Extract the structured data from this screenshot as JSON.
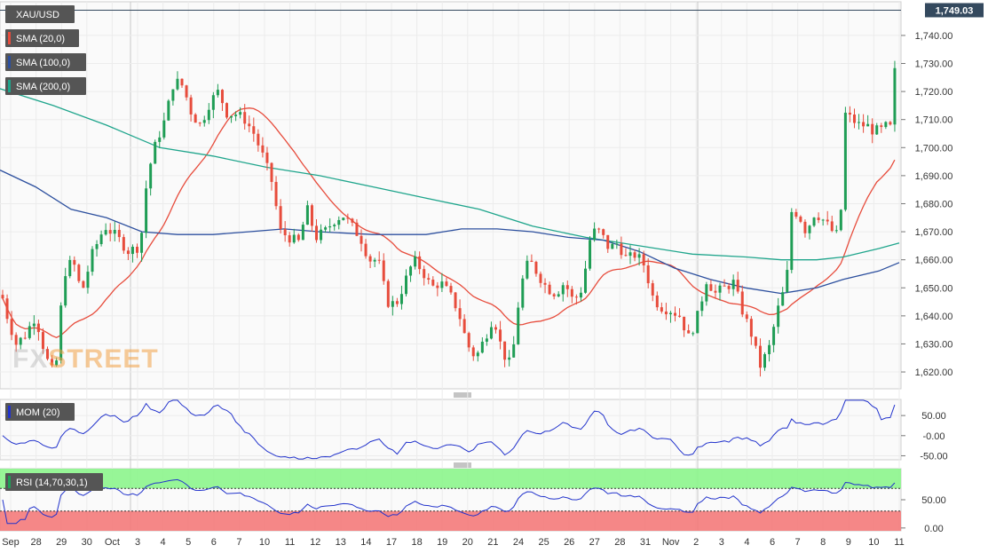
{
  "chart_data": {
    "type": "candlestick",
    "symbol": "XAU/USD",
    "last_price_label": "1,749.03",
    "price_ticks": [
      "1,740.00",
      "1,730.00",
      "1,720.00",
      "1,710.00",
      "1,700.00",
      "1,690.00",
      "1,680.00",
      "1,670.00",
      "1,660.00",
      "1,650.00",
      "1,640.00",
      "1,630.00",
      "1,620.00"
    ],
    "price_tick_values": [
      1740,
      1730,
      1720,
      1710,
      1700,
      1690,
      1680,
      1670,
      1660,
      1650,
      1640,
      1630,
      1620
    ],
    "price_range": [
      1614,
      1752
    ],
    "x_labels": [
      "Sep",
      "28",
      "29",
      "30",
      "Oct",
      "3",
      "4",
      "5",
      "6",
      "7",
      "10",
      "11",
      "12",
      "13",
      "14",
      "17",
      "18",
      "19",
      "20",
      "21",
      "24",
      "25",
      "26",
      "27",
      "28",
      "31",
      "Nov",
      "2",
      "3",
      "4",
      "6",
      "7",
      "8",
      "9",
      "10",
      "11"
    ],
    "indicators": {
      "sma20": {
        "label": "SMA (20,0)",
        "color": "#e74c3c"
      },
      "sma100": {
        "label": "SMA (100,0)",
        "color": "#2c4f9e"
      },
      "sma200": {
        "label": "SMA (200,0)",
        "color": "#1fa58c"
      }
    },
    "mom": {
      "label": "MOM (20)",
      "ticks": [
        "50.00",
        "-0.00",
        "-50.00"
      ],
      "tick_values": [
        50,
        0,
        -50
      ],
      "range": [
        -60,
        90
      ],
      "color": "#2233cc"
    },
    "rsi": {
      "label": "RSI (14,70,30,1)",
      "ticks": [
        "50.00",
        "0.00"
      ],
      "tick_values": [
        50,
        0
      ],
      "overbought": 70,
      "oversold": 30,
      "range": [
        -5,
        105
      ],
      "color": "#2233cc"
    },
    "colors": {
      "up": "#1f9d55",
      "down": "#e74c3c",
      "last_price_line": "#34495e",
      "label_bg": "#555555",
      "rsi_overbought": "#8cf58c",
      "rsi_oversold": "#f47a7a"
    },
    "watermark": {
      "part1": "FX",
      "part2": "STREET"
    }
  }
}
